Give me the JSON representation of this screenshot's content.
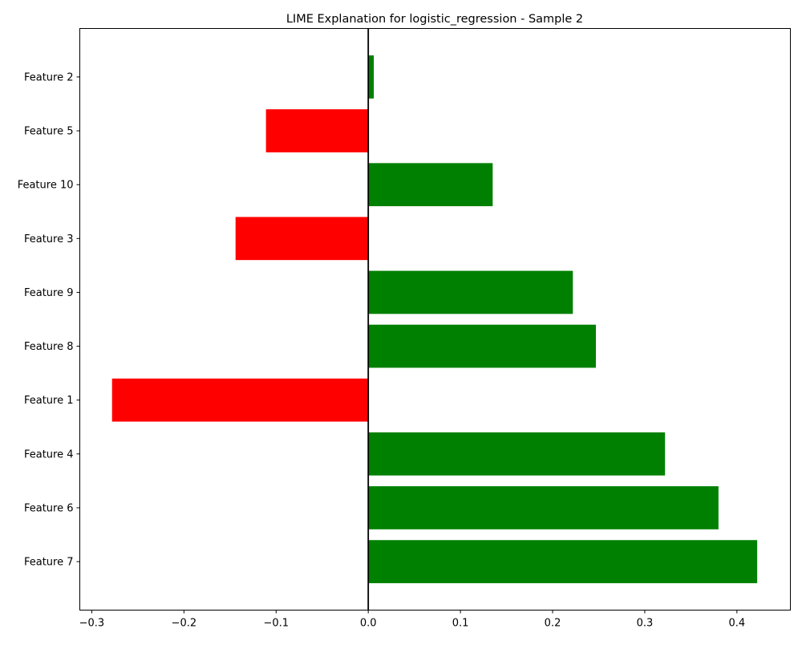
{
  "chart_data": {
    "type": "bar",
    "orientation": "horizontal",
    "title": "LIME Explanation for logistic_regression - Sample 2",
    "xlabel": "",
    "ylabel": "",
    "categories": [
      "Feature 7",
      "Feature 6",
      "Feature 4",
      "Feature 1",
      "Feature 8",
      "Feature 9",
      "Feature 3",
      "Feature 10",
      "Feature 5",
      "Feature 2"
    ],
    "values": [
      0.422,
      0.38,
      0.322,
      -0.278,
      0.247,
      0.222,
      -0.144,
      0.135,
      -0.111,
      0.006
    ],
    "xlim": [
      -0.313,
      0.458
    ],
    "xticks": [
      -0.3,
      -0.2,
      -0.1,
      0.0,
      0.1,
      0.2,
      0.3,
      0.4
    ],
    "xtick_labels": [
      "−0.3",
      "−0.2",
      "−0.1",
      "0.0",
      "0.1",
      "0.2",
      "0.3",
      "0.4"
    ],
    "grid": false,
    "colors": {
      "positive": "#008000",
      "negative": "#ff0000",
      "zero_line": "#000000",
      "axis": "#000000",
      "text": "#000000"
    }
  }
}
